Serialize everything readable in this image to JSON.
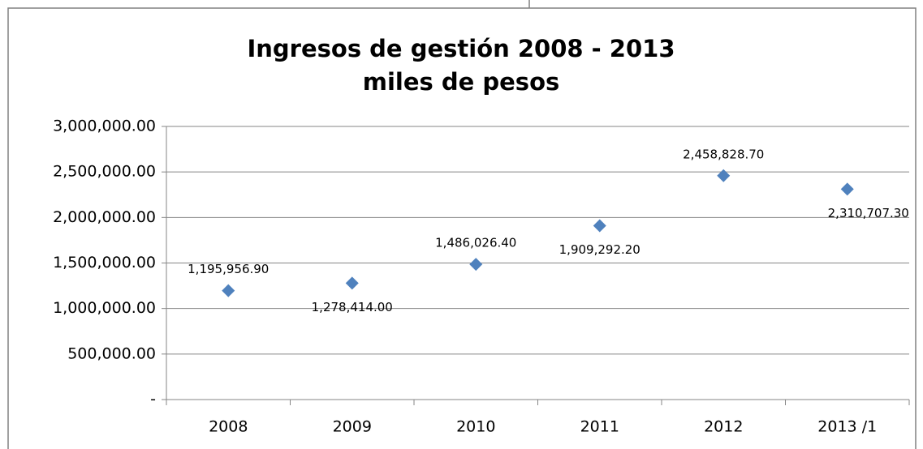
{
  "chart_data": {
    "type": "line",
    "title": [
      "Ingresos de gestión 2008 - 2013",
      "miles de pesos"
    ],
    "categories": [
      "2008",
      "2009",
      "2010",
      "2011",
      "2012",
      "2013 /1"
    ],
    "series": [
      {
        "name": "Ingresos de gestión",
        "color": "#4f81bd",
        "values": [
          1195956.9,
          1278414.0,
          1486026.4,
          1909292.2,
          2458828.7,
          2310707.3
        ],
        "value_labels": [
          "1,195,956.90",
          "1,278,414.00",
          "1,486,026.40",
          "1,909,292.20",
          "2,458,828.70",
          "2,310,707.30"
        ]
      }
    ],
    "ylim": [
      0,
      3000000
    ],
    "yticks": [
      {
        "value": 0,
        "label": "-"
      },
      {
        "value": 500000,
        "label": "500,000.00"
      },
      {
        "value": 1000000,
        "label": "1,000,000.00"
      },
      {
        "value": 1500000,
        "label": "1,500,000.00"
      },
      {
        "value": 2000000,
        "label": "2,000,000.00"
      },
      {
        "value": 2500000,
        "label": "2,500,000.00"
      },
      {
        "value": 3000000,
        "label": "3,000,000.00"
      }
    ],
    "grid": true
  }
}
